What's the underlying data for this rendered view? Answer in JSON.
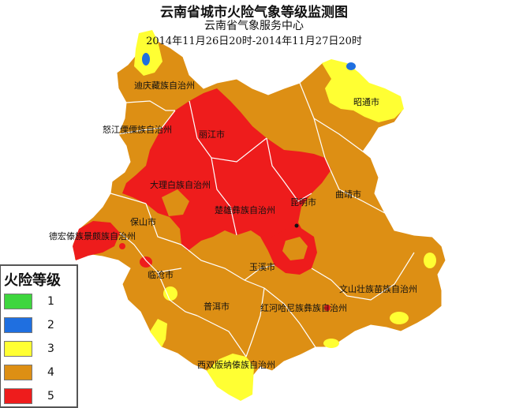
{
  "title": "云南省城市火险气象等级监测图",
  "subtitle": "云南省气象服务中心",
  "period": "2014年11月26日20时-2014年11月27日20时",
  "legend": {
    "title": "火险等级",
    "items": [
      {
        "level": "1",
        "color": "#3ed63e"
      },
      {
        "level": "2",
        "color": "#1f6fe0"
      },
      {
        "level": "3",
        "color": "#ffff33"
      },
      {
        "level": "4",
        "color": "#dd8f14"
      },
      {
        "level": "5",
        "color": "#ee1c1c"
      }
    ]
  },
  "regions": {
    "diqing": "迪庆藏族自治州",
    "nujiang": "怒江傈僳族自治州",
    "lijiang": "丽江市",
    "zhaotong": "昭通市",
    "dali": "大理白族自治州",
    "qujing": "曲靖市",
    "chuxiong": "楚雄彝族自治州",
    "kunming": "昆明市",
    "baoshan": "保山市",
    "dehong": "德宏傣族景颇族自治州",
    "yuxi": "玉溪市",
    "lincang": "临沧市",
    "wenshan": "文山壮族苗族自治州",
    "puer": "普洱市",
    "honghe": "红河哈尼族彝族自治州",
    "xishuangbanna": "西双版纳傣族自治州"
  }
}
